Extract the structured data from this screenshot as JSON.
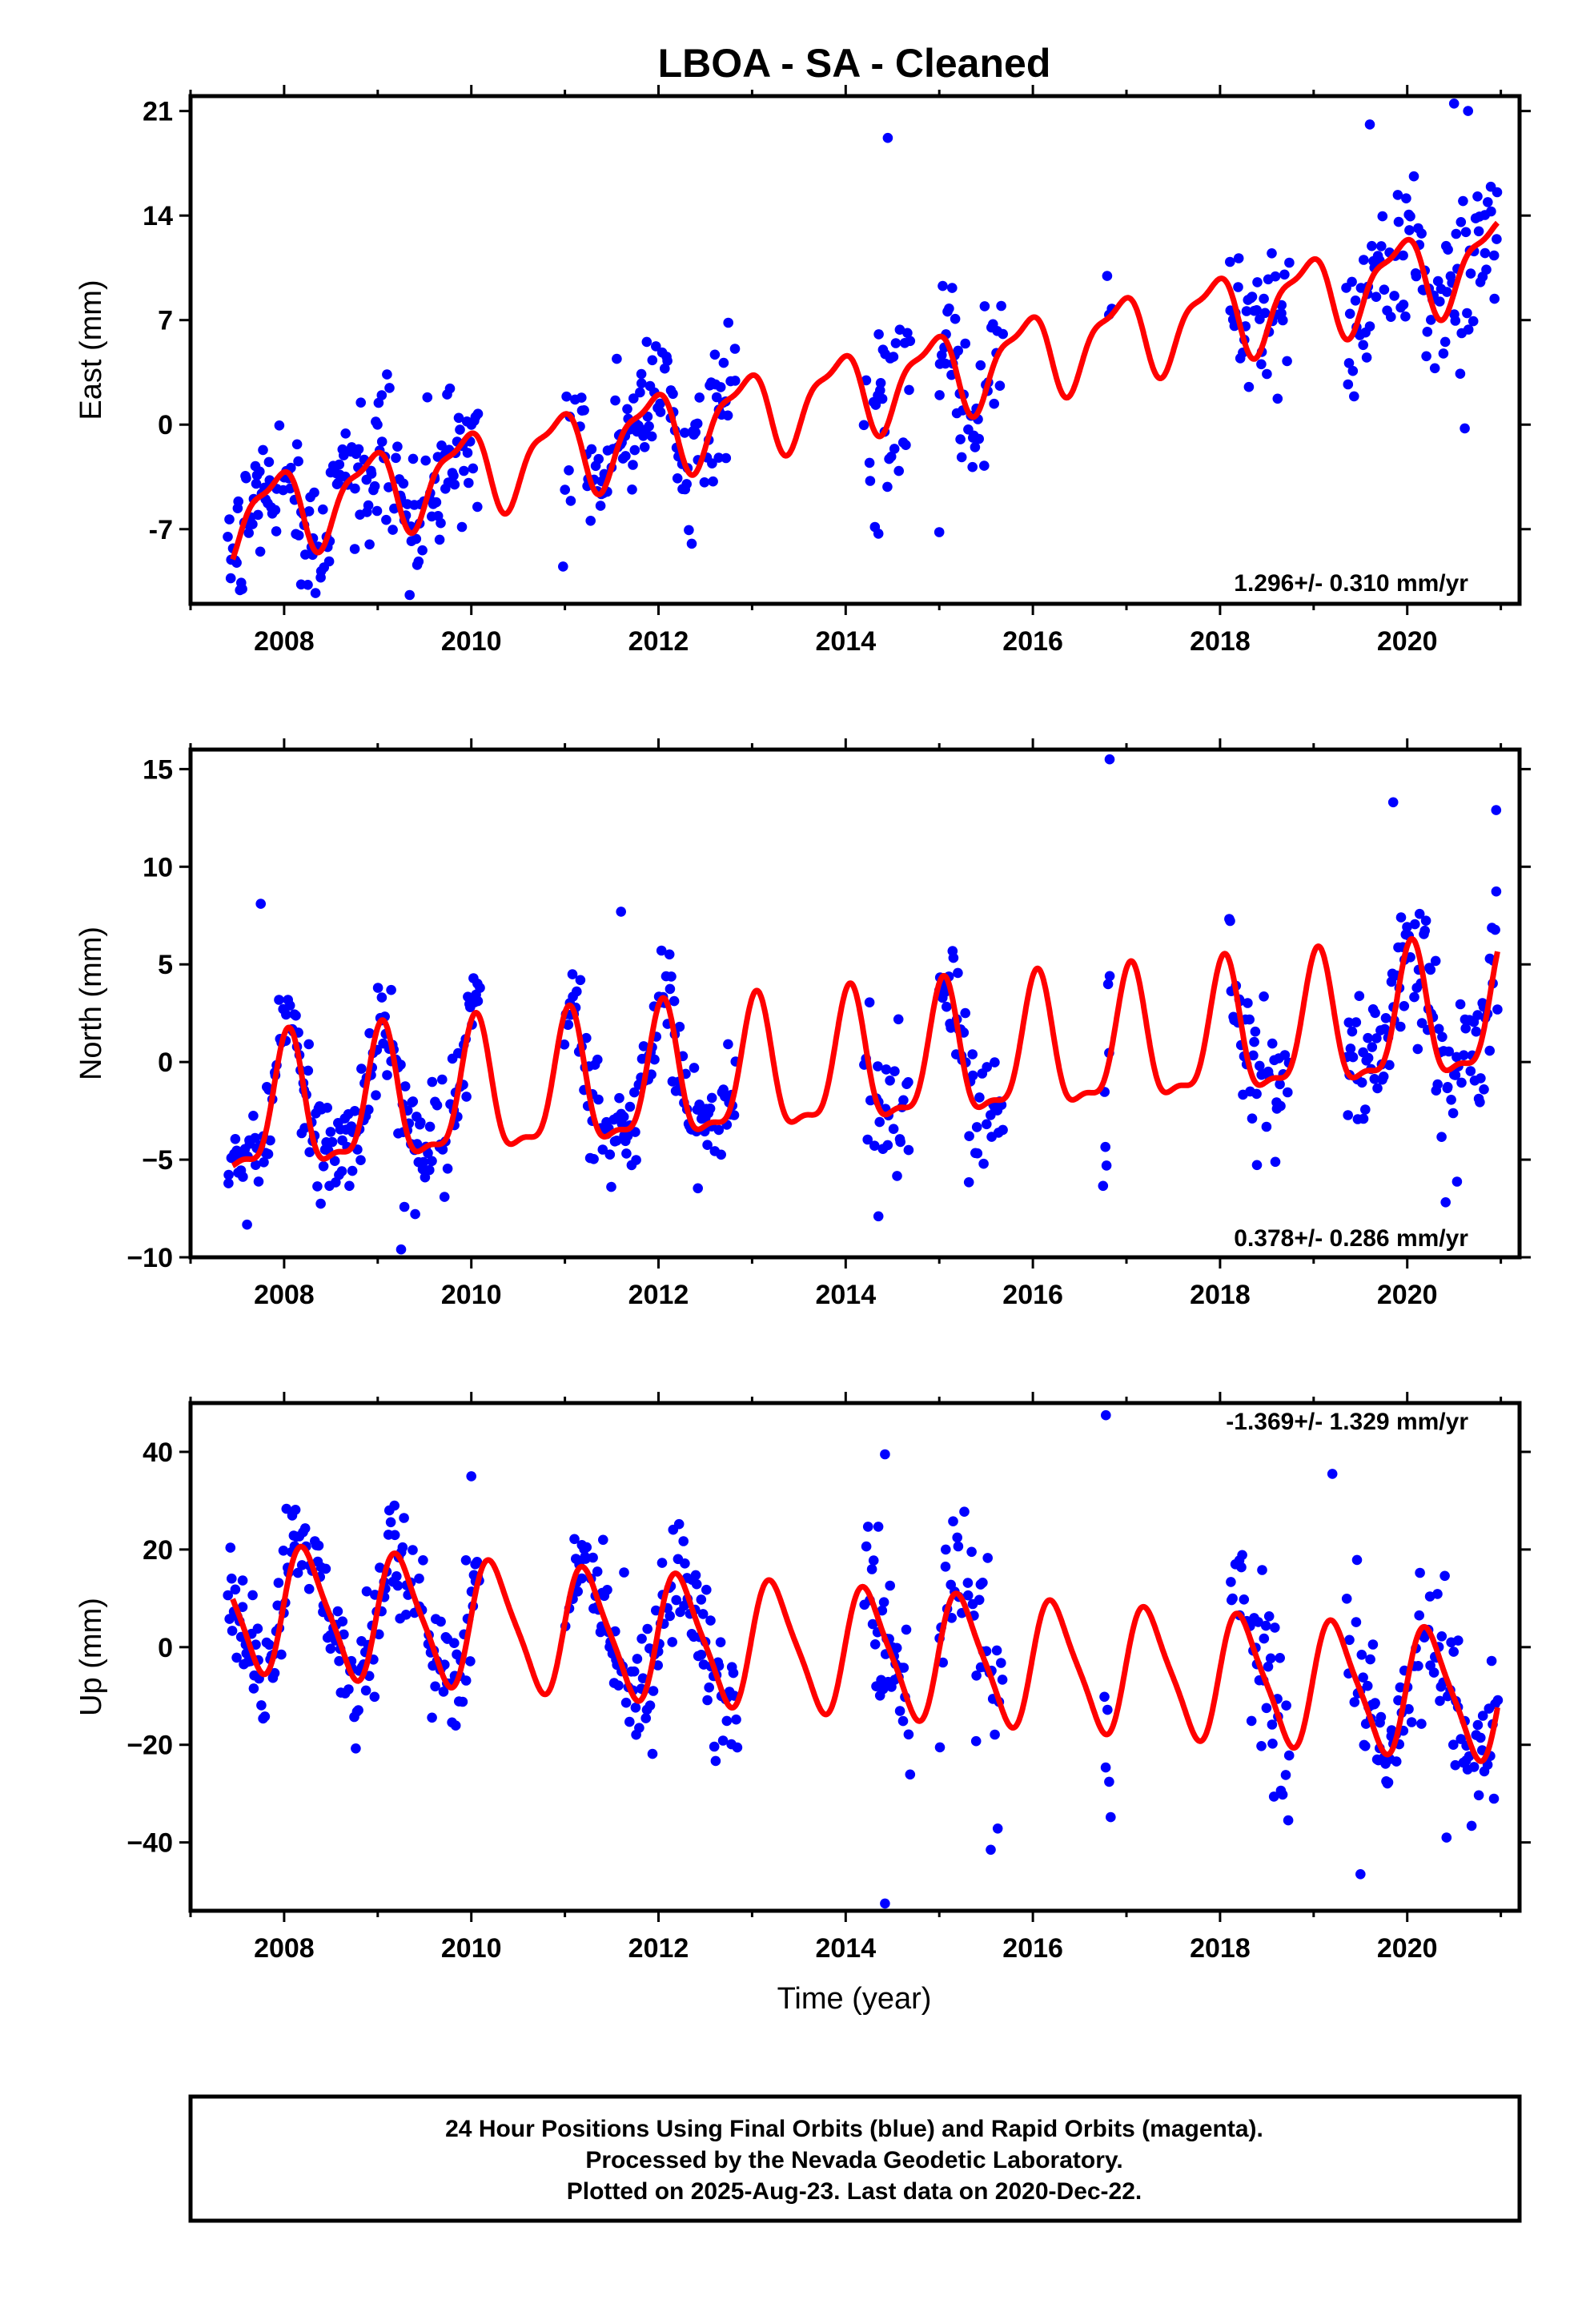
{
  "title": "LBOA  - SA - Cleaned",
  "colors": {
    "points": "#0000ff",
    "fit": "#ff0000",
    "frame": "#000000"
  },
  "xlabel": "Time (year)",
  "x_ticks": [
    "2008",
    "2010",
    "2012",
    "2014",
    "2016",
    "2018",
    "2020"
  ],
  "note": {
    "lines": [
      "24 Hour Positions Using Final Orbits (blue) and Rapid Orbits (magenta).",
      "Processed by the Nevada Geodetic Laboratory.",
      "Plotted on 2025-Aug-23. Last data on 2020-Dec-22."
    ]
  },
  "chart_data": [
    {
      "type": "scatter",
      "ylabel": "East (mm)",
      "xlim": [
        2007.0,
        2021.2
      ],
      "ylim": [
        -12,
        22
      ],
      "yticks": [
        -7,
        0,
        7,
        14,
        21
      ],
      "ytick_labels": [
        "-7",
        "0",
        "7",
        "14",
        "21"
      ],
      "rate": "1.296+/- 0.310 mm/yr",
      "fit": {
        "slope": 1.296,
        "x0": 2014.2,
        "offset": 2.4,
        "annual_amp": 2.6,
        "annual_phase": 2.2,
        "semi_amp": 0.9,
        "semi_phase": 0.4,
        "t0": 2007.45,
        "t1": 2020.97
      },
      "data_segments": [
        {
          "start": 2007.4,
          "end": 2010.1,
          "noise": 2.3
        },
        {
          "start": 2011.0,
          "end": 2012.85,
          "noise": 2.2
        },
        {
          "start": 2014.2,
          "end": 2014.7,
          "noise": 3.5
        },
        {
          "start": 2015.0,
          "end": 2015.7,
          "noise": 2.8
        },
        {
          "start": 2016.75,
          "end": 2016.85,
          "noise": 3.5
        },
        {
          "start": 2018.1,
          "end": 2018.75,
          "noise": 2.8
        },
        {
          "start": 2019.35,
          "end": 2020.97,
          "noise": 2.8
        }
      ],
      "outliers": [
        [
          2014.45,
          19.2
        ],
        [
          2019.6,
          20.1
        ],
        [
          2020.5,
          21.5
        ],
        [
          2020.65,
          21.0
        ],
        [
          2010.98,
          -9.5
        ],
        [
          2015.0,
          -7.2
        ],
        [
          2014.35,
          -7.3
        ]
      ]
    },
    {
      "type": "scatter",
      "ylabel": "North (mm)",
      "xlim": [
        2007.0,
        2021.2
      ],
      "ylim": [
        -10,
        16
      ],
      "yticks": [
        -10,
        -5,
        0,
        5,
        10,
        15
      ],
      "ytick_labels": [
        "−10",
        "−5",
        "0",
        "5",
        "10",
        "15"
      ],
      "rate": "0.378+/- 0.286 mm/yr",
      "fit": {
        "slope": 0.378,
        "x0": 2014.2,
        "offset": -0.3,
        "annual_amp": 3.3,
        "annual_phase": 1.3,
        "semi_amp": 1.1,
        "semi_phase": 0.9,
        "t0": 2007.45,
        "t1": 2020.97
      },
      "data_segments": [
        {
          "start": 2007.4,
          "end": 2010.1,
          "noise": 1.5
        },
        {
          "start": 2011.0,
          "end": 2012.85,
          "noise": 1.5
        },
        {
          "start": 2014.2,
          "end": 2014.7,
          "noise": 2.0
        },
        {
          "start": 2015.0,
          "end": 2015.7,
          "noise": 1.8
        },
        {
          "start": 2016.75,
          "end": 2016.85,
          "noise": 2.5
        },
        {
          "start": 2018.1,
          "end": 2018.75,
          "noise": 1.8
        },
        {
          "start": 2019.35,
          "end": 2020.97,
          "noise": 1.8
        }
      ],
      "outliers": [
        [
          2016.82,
          15.5
        ],
        [
          2007.75,
          8.1
        ],
        [
          2011.6,
          7.7
        ],
        [
          2019.85,
          13.3
        ],
        [
          2020.95,
          12.9
        ],
        [
          2009.25,
          -9.6
        ],
        [
          2014.35,
          -7.9
        ]
      ]
    },
    {
      "type": "scatter",
      "ylabel": "Up (mm)",
      "xlim": [
        2007.0,
        2021.2
      ],
      "ylim": [
        -54,
        50
      ],
      "yticks": [
        -40,
        -20,
        0,
        20,
        40
      ],
      "ytick_labels": [
        "−40",
        "−20",
        "0",
        "20",
        "40"
      ],
      "rate": "-1.369+/- 1.329 mm/yr",
      "fit": {
        "slope": -1.369,
        "x0": 2014.2,
        "offset": -1.0,
        "annual_amp": 12.5,
        "annual_phase": 0.1,
        "semi_amp": 2.5,
        "semi_phase": 0.2,
        "t0": 2007.45,
        "t1": 2020.97
      },
      "data_segments": [
        {
          "start": 2007.4,
          "end": 2010.1,
          "noise": 6.0
        },
        {
          "start": 2011.0,
          "end": 2012.85,
          "noise": 6.0
        },
        {
          "start": 2014.2,
          "end": 2014.7,
          "noise": 9.0
        },
        {
          "start": 2015.0,
          "end": 2015.7,
          "noise": 9.0
        },
        {
          "start": 2016.75,
          "end": 2016.85,
          "noise": 12.0
        },
        {
          "start": 2018.1,
          "end": 2018.75,
          "noise": 8.0
        },
        {
          "start": 2019.35,
          "end": 2020.97,
          "noise": 8.0
        }
      ],
      "outliers": [
        [
          2016.78,
          47.5
        ],
        [
          2014.42,
          39.5
        ],
        [
          2014.42,
          -52.5
        ],
        [
          2015.55,
          -41.5
        ],
        [
          2019.5,
          -46.5
        ],
        [
          2020.42,
          -39.0
        ],
        [
          2010.0,
          35.0
        ],
        [
          2019.2,
          35.5
        ]
      ]
    }
  ]
}
